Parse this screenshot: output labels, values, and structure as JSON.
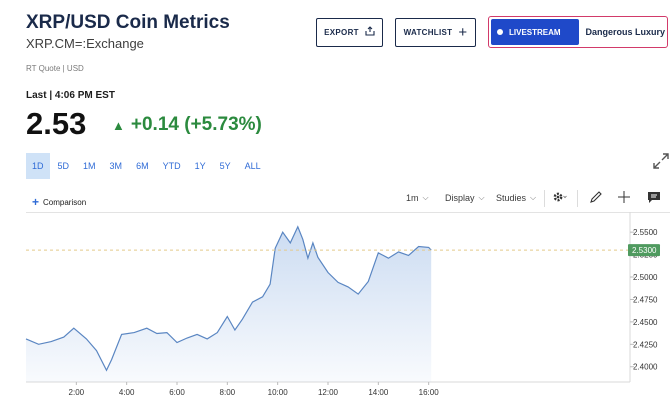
{
  "header": {
    "title": "XRP/USD Coin Metrics",
    "subtitle": "XRP.CM=:Exchange",
    "quote_source": "RT Quote | USD"
  },
  "actions": {
    "export_label": "EXPORT",
    "watchlist_label": "WATCHLIST",
    "livestream_label": "LIVESTREAM",
    "live_show_title": "Dangerous Luxury"
  },
  "quote": {
    "last_time": "Last | 4:06 PM EST",
    "price": "2.53",
    "change": "+0.14 (+5.73%)",
    "direction": "up",
    "up_color": "#2b8a3e"
  },
  "ranges": {
    "items": [
      "1D",
      "5D",
      "1M",
      "3M",
      "6M",
      "YTD",
      "1Y",
      "5Y",
      "ALL"
    ],
    "active": "1D"
  },
  "toolbar": {
    "comparison_label": "Comparison",
    "interval_label": "1m",
    "display_label": "Display",
    "studies_label": "Studies",
    "icons": [
      "gear-icon",
      "pencil-icon",
      "crosshair-icon",
      "comment-icon",
      "expand-icon"
    ]
  },
  "chart_data": {
    "type": "area",
    "x_ticks": [
      "2:00",
      "4:00",
      "6:00",
      "8:00",
      "10:00",
      "12:00",
      "14:00",
      "16:00"
    ],
    "y_ticks": [
      "2.4000",
      "2.4250",
      "2.4500",
      "2.4750",
      "2.5000",
      "2.5250",
      "2.5500"
    ],
    "current_label": "2.5300",
    "reference_value": 2.53,
    "ylim": [
      2.383,
      2.568
    ],
    "xlim": [
      0,
      24
    ],
    "line_color": "#5a86c2",
    "fill_color": "#c9daf1",
    "x_hours": [
      0,
      0.5,
      1.0,
      1.5,
      1.9,
      2.4,
      2.8,
      3.2,
      3.4,
      3.8,
      4.3,
      4.8,
      5.2,
      5.6,
      6.0,
      6.4,
      6.8,
      7.2,
      7.6,
      8.0,
      8.3,
      8.6,
      9.0,
      9.4,
      9.7,
      9.9,
      10.2,
      10.5,
      10.8,
      11.0,
      11.2,
      11.4,
      11.6,
      12.0,
      12.4,
      12.8,
      13.2,
      13.6,
      14.0,
      14.4,
      14.8,
      15.2,
      15.6,
      16.0,
      16.1
    ],
    "values": [
      2.431,
      2.425,
      2.428,
      2.433,
      2.443,
      2.431,
      2.418,
      2.396,
      2.408,
      2.436,
      2.438,
      2.443,
      2.437,
      2.438,
      2.427,
      2.432,
      2.436,
      2.431,
      2.438,
      2.456,
      2.441,
      2.453,
      2.472,
      2.478,
      2.492,
      2.532,
      2.55,
      2.538,
      2.556,
      2.542,
      2.521,
      2.538,
      2.522,
      2.505,
      2.494,
      2.489,
      2.481,
      2.495,
      2.527,
      2.521,
      2.528,
      2.524,
      2.534,
      2.533,
      2.53
    ]
  }
}
